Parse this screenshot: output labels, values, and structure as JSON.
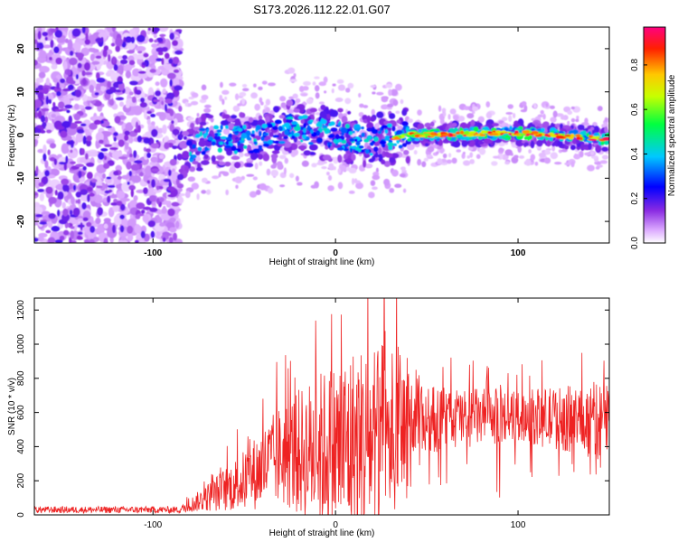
{
  "title": "S173.2026.112.22.01.G07",
  "chart_data": [
    {
      "type": "heatmap",
      "xlabel": "Height of straight line (km)",
      "ylabel": "Frequency (Hz)",
      "xlim": [
        -165,
        150
      ],
      "ylim": [
        -25,
        25
      ],
      "xticks": [
        -100,
        0,
        100
      ],
      "yticks": [
        -20,
        -10,
        0,
        10,
        20
      ],
      "colorbar": {
        "label": "Normalized spectral amplitude",
        "ticks": [
          "0.0",
          "0.2",
          "0.4",
          "0.6",
          "0.8"
        ],
        "range": [
          0,
          0.97
        ],
        "colors": [
          "#ffffff",
          "#dcaaff",
          "#8a2be2",
          "#0000ff",
          "#00c8ff",
          "#00ff40",
          "#c8ff00",
          "#ffc800",
          "#ff2000",
          "#ff0080"
        ]
      },
      "ridge": {
        "description": "noise region below -85 km, signal ridge near 0 Hz above -85 km",
        "noise_end_km": -85,
        "ridge_frequency_hz": [
          {
            "x": -90,
            "f": -5
          },
          {
            "x": -70,
            "f": -1
          },
          {
            "x": -40,
            "f": -1
          },
          {
            "x": -25,
            "f": 2
          },
          {
            "x": 0,
            "f": 0
          },
          {
            "x": 20,
            "f": -1.5
          },
          {
            "x": 40,
            "f": 0
          },
          {
            "x": 100,
            "f": 0.5
          },
          {
            "x": 150,
            "f": -1
          }
        ],
        "peak_amplitude": 0.95
      }
    },
    {
      "type": "line",
      "xlabel": "Height of straight line (km)",
      "ylabel": "SNR (10 * v/v)",
      "xlim": [
        -165,
        150
      ],
      "ylim": [
        0,
        1270
      ],
      "xticks": [
        -100,
        0,
        100
      ],
      "yticks": [
        0,
        200,
        400,
        600,
        800,
        1000,
        1200
      ],
      "color": "#ee2222",
      "envelope": [
        {
          "x": -165,
          "base": 30,
          "spread": 20
        },
        {
          "x": -85,
          "base": 30,
          "spread": 20
        },
        {
          "x": -75,
          "base": 80,
          "spread": 60
        },
        {
          "x": -50,
          "base": 200,
          "spread": 180
        },
        {
          "x": -30,
          "base": 350,
          "spread": 300
        },
        {
          "x": -10,
          "base": 380,
          "spread": 450
        },
        {
          "x": 10,
          "base": 400,
          "spread": 600
        },
        {
          "x": 35,
          "base": 500,
          "spread": 500
        },
        {
          "x": 50,
          "base": 560,
          "spread": 200
        },
        {
          "x": 100,
          "base": 580,
          "spread": 150
        },
        {
          "x": 130,
          "base": 560,
          "spread": 200
        },
        {
          "x": 150,
          "base": 550,
          "spread": 250
        }
      ]
    }
  ]
}
